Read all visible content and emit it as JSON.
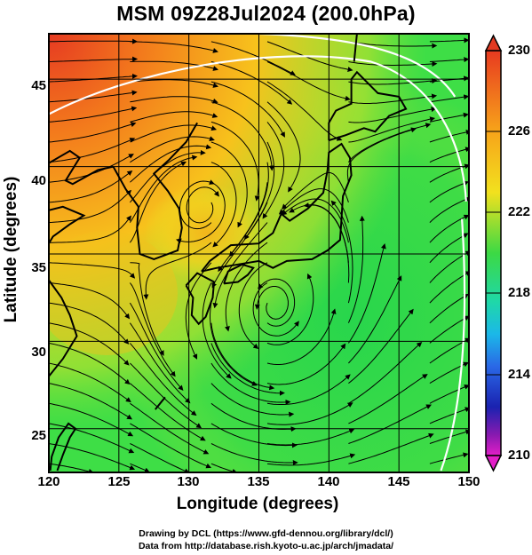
{
  "title": "MSM 09Z28Jul2024 (200.0hPa)",
  "x_axis": {
    "label": "Longitude (degrees)",
    "ticks": [
      "120",
      "125",
      "130",
      "135",
      "140",
      "145",
      "150"
    ],
    "range": [
      120,
      150
    ]
  },
  "y_axis": {
    "label": "Latitude  (degrees)",
    "ticks": [
      "25",
      "30",
      "35",
      "40",
      "45"
    ],
    "range": [
      22.5,
      47.6
    ]
  },
  "colorbar": {
    "ticks": [
      "230",
      "226",
      "222",
      "218",
      "214",
      "210"
    ],
    "range": [
      210,
      230
    ],
    "units": ""
  },
  "credits": {
    "line1": "Drawing by DCL (https://www.gfd-dennou.org/library/dcl/)",
    "line2": "Data from http://database.rish.kyoto-u.ac.jp/arch/jmadata/"
  },
  "colors": {
    "warm": "#e23a1e",
    "orange": "#f7a21a",
    "yellow": "#f2e31e",
    "green": "#2fd84c",
    "coast": "#000000",
    "streamline": "#000000",
    "contour": "#ffffff"
  },
  "map": {
    "field": "temperature (K) with wind streamlines",
    "anticyclone_center": [
      131.5,
      37.5
    ],
    "cyclone_center": [
      136.0,
      32.0
    ]
  }
}
